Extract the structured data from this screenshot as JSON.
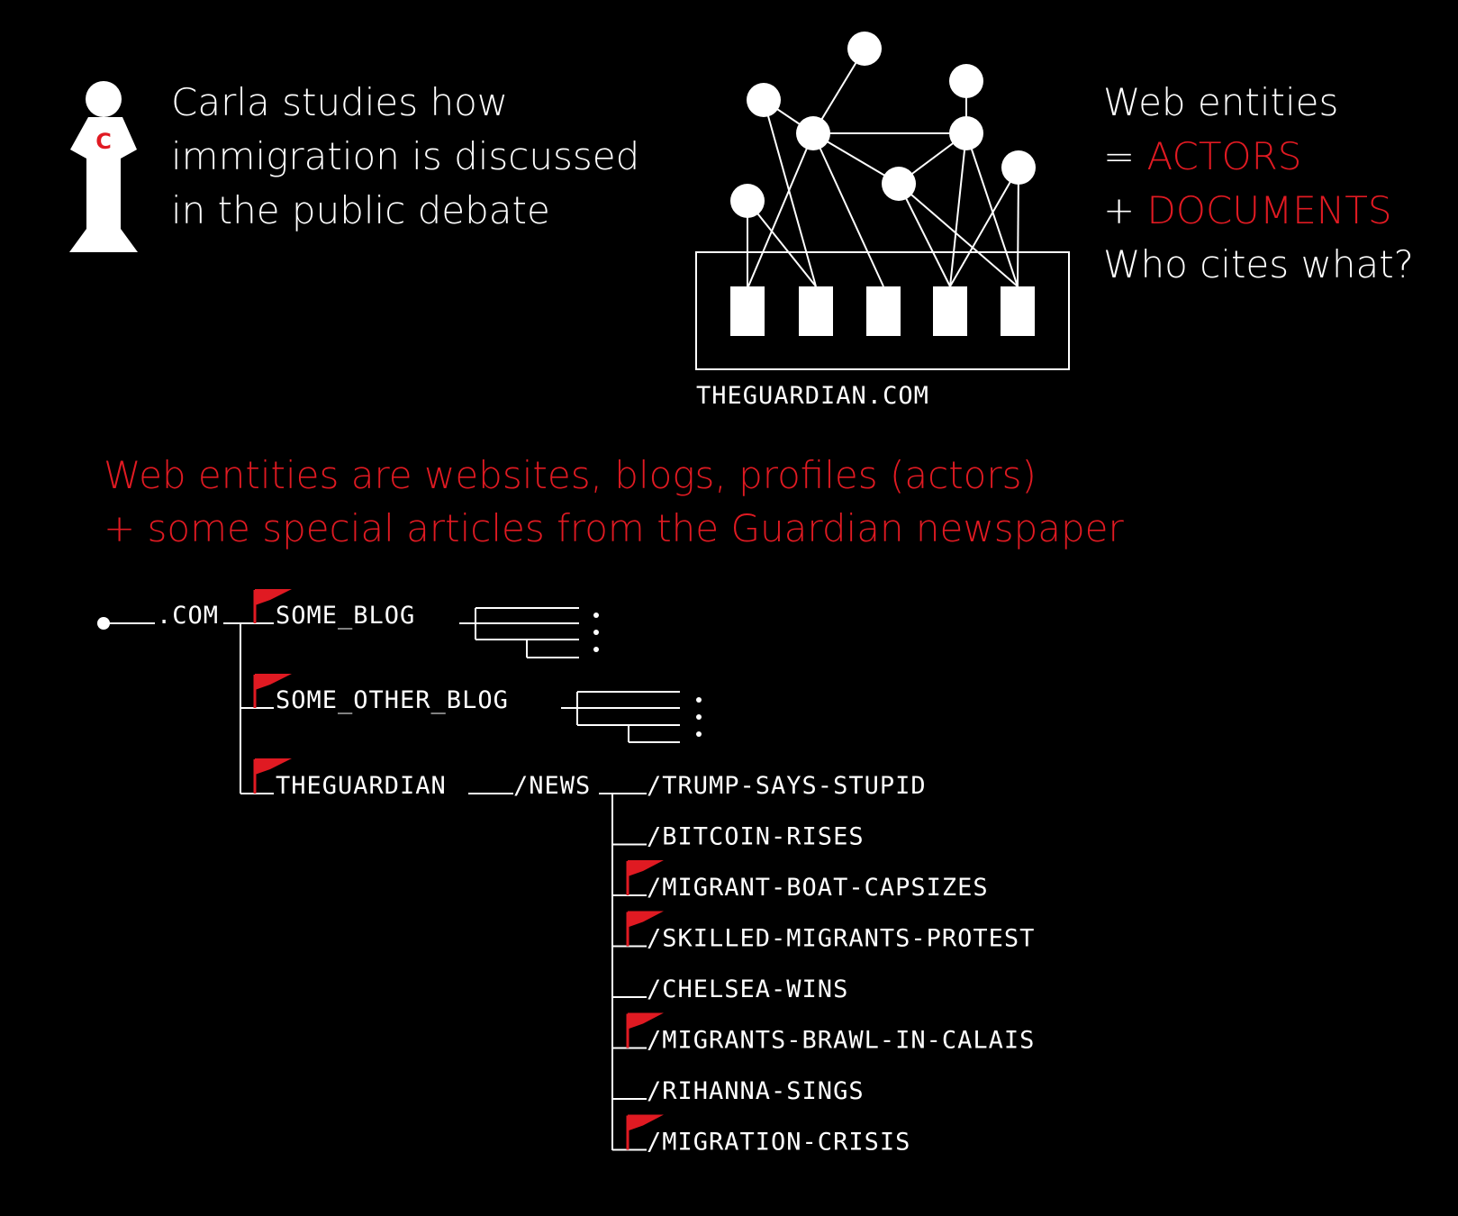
{
  "persona": {
    "badge_letter": "C",
    "lines": [
      "Carla studies how",
      "immigration is discussed",
      "in the public debate"
    ]
  },
  "legend": {
    "line1": "Web entities",
    "line2_prefix": "= ",
    "line2_highlight": "ACTORS",
    "line3_prefix": "+ ",
    "line3_highlight": "DOCUMENTS",
    "line4": "Who cites what?"
  },
  "network": {
    "site_label": "THEGUARDIAN.COM"
  },
  "definition": {
    "line1": "Web entities are websites, blogs, profiles (actors)",
    "line2": "+ some special articles from the Guardian newspaper"
  },
  "tree": {
    "root": ".COM",
    "branches": [
      "SOME_BLOG",
      "SOME_OTHER_BLOG",
      "THEGUARDIAN"
    ],
    "news": "/NEWS",
    "articles": [
      {
        "label": "/TRUMP-SAYS-STUPID",
        "flagged": false
      },
      {
        "label": "/BITCOIN-RISES",
        "flagged": false
      },
      {
        "label": "/MIGRANT-BOAT-CAPSIZES",
        "flagged": true
      },
      {
        "label": "/SKILLED-MIGRANTS-PROTEST",
        "flagged": true
      },
      {
        "label": "/CHELSEA-WINS",
        "flagged": false
      },
      {
        "label": "/MIGRANTS-BRAWL-IN-CALAIS",
        "flagged": true
      },
      {
        "label": "/RIHANNA-SINGS",
        "flagged": false
      },
      {
        "label": "/MIGRATION-CRISIS",
        "flagged": true
      }
    ]
  },
  "colors": {
    "background": "#000000",
    "foreground": "#ffffff",
    "accent": "#e01a22"
  }
}
